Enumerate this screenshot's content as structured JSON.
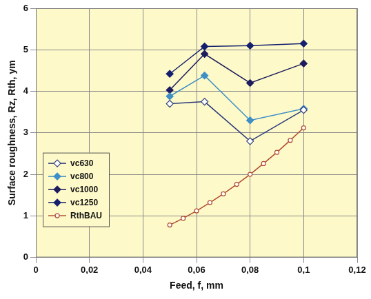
{
  "chart_data": {
    "type": "line",
    "x_label": "Feed, f, mm",
    "y_label": "Surface roughness, Rz, Rth, ym",
    "xlim": [
      0,
      0.12
    ],
    "xticks": [
      0,
      {
        "value": 0.02,
        "label": "0,02"
      },
      {
        "value": 0.04,
        "label": "0,04"
      },
      {
        "value": 0.06,
        "label": "0,06"
      },
      {
        "value": 0.08,
        "label": "0,08"
      },
      {
        "value": 0.1,
        "label": "0,1"
      },
      {
        "value": 0.12,
        "label": "0,12"
      }
    ],
    "ylim": [
      0,
      6
    ],
    "yticks": [
      0,
      1,
      2,
      3,
      4,
      5,
      6
    ],
    "grid": true,
    "legend": "lower left",
    "series": [
      {
        "name": "vc630",
        "color": "#2a3a7a",
        "marker": "diamond-open",
        "x": [
          0.05,
          0.063,
          0.08,
          0.1
        ],
        "values": [
          3.7,
          3.75,
          2.8,
          3.55
        ]
      },
      {
        "name": "vc800",
        "color": "#3d8fc6",
        "marker": "diamond",
        "x": [
          0.05,
          0.063,
          0.08,
          0.1
        ],
        "values": [
          3.88,
          4.38,
          3.3,
          3.58
        ]
      },
      {
        "name": "vc1000",
        "color": "#1c1c5e",
        "marker": "diamond",
        "x": [
          0.05,
          0.063,
          0.08,
          0.1
        ],
        "values": [
          4.03,
          4.9,
          4.2,
          4.67
        ]
      },
      {
        "name": "vc1250",
        "color": "#14206e",
        "marker": "diamond",
        "x": [
          0.05,
          0.063,
          0.08,
          0.1
        ],
        "values": [
          4.42,
          5.08,
          5.1,
          5.15
        ]
      },
      {
        "name": "RthBAU",
        "color": "#b04a30",
        "marker": "circle-open",
        "x": [
          0.05,
          0.055,
          0.06,
          0.065,
          0.07,
          0.075,
          0.08,
          0.085,
          0.09,
          0.095,
          0.1
        ],
        "values": [
          0.78,
          0.94,
          1.12,
          1.32,
          1.53,
          1.76,
          2.0,
          2.26,
          2.53,
          2.82,
          3.12
        ]
      }
    ]
  }
}
